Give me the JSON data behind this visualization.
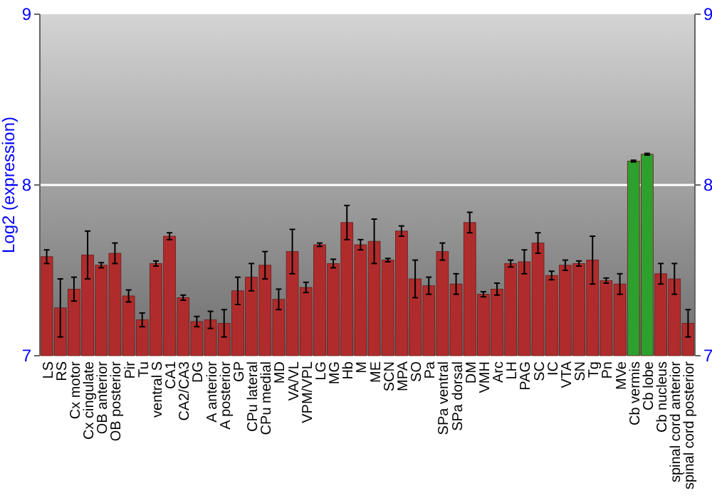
{
  "chart_data": {
    "type": "bar",
    "ylabel": "Log2 (expression)",
    "categories": [
      "LS",
      "RS",
      "Cx motor",
      "Cx cingulate",
      "OB anterior",
      "OB posterior",
      "Pir",
      "Tu",
      "ventral S",
      "CA1",
      "CA2/CA3",
      "DG",
      "A anterior",
      "A posterior",
      "GP",
      "CPu lateral",
      "CPu medial",
      "MD",
      "VA/VL",
      "VPM/VPL",
      "LG",
      "MG",
      "Hb",
      "M",
      "ME",
      "SCN",
      "MPA",
      "SO",
      "Pa",
      "SPa ventral",
      "SPa dorsal",
      "DM",
      "VMH",
      "Arc",
      "LH",
      "PAG",
      "SC",
      "IC",
      "VTA",
      "SN",
      "Tg",
      "Pn",
      "MVe",
      "Cb vermis",
      "Cb lobe",
      "Cb nucleus",
      "spinal cord anterior",
      "spinal cord posterior"
    ],
    "values": [
      7.58,
      7.28,
      7.39,
      7.59,
      7.53,
      7.6,
      7.35,
      7.21,
      7.54,
      7.7,
      7.34,
      7.2,
      7.21,
      7.19,
      7.38,
      7.46,
      7.53,
      7.33,
      7.61,
      7.4,
      7.65,
      7.54,
      7.78,
      7.65,
      7.67,
      7.56,
      7.73,
      7.45,
      7.41,
      7.61,
      7.42,
      7.78,
      7.36,
      7.39,
      7.54,
      7.55,
      7.66,
      7.47,
      7.53,
      7.54,
      7.56,
      7.44,
      7.42,
      8.14,
      8.18,
      7.48,
      7.45,
      7.19
    ],
    "errors": [
      0.04,
      0.17,
      0.07,
      0.14,
      0.015,
      0.06,
      0.035,
      0.04,
      0.015,
      0.02,
      0.015,
      0.03,
      0.05,
      0.08,
      0.08,
      0.08,
      0.08,
      0.06,
      0.13,
      0.03,
      0.01,
      0.025,
      0.1,
      0.03,
      0.13,
      0.01,
      0.03,
      0.11,
      0.05,
      0.05,
      0.06,
      0.06,
      0.015,
      0.035,
      0.02,
      0.07,
      0.06,
      0.025,
      0.03,
      0.015,
      0.14,
      0.015,
      0.06,
      0.005,
      0.005,
      0.06,
      0.09,
      0.08
    ],
    "colors": [
      "#b02c2c",
      "#b02c2c",
      "#b02c2c",
      "#b02c2c",
      "#b02c2c",
      "#b02c2c",
      "#b02c2c",
      "#b02c2c",
      "#b02c2c",
      "#b02c2c",
      "#b02c2c",
      "#b02c2c",
      "#b02c2c",
      "#b02c2c",
      "#b02c2c",
      "#b02c2c",
      "#b02c2c",
      "#b02c2c",
      "#b02c2c",
      "#b02c2c",
      "#b02c2c",
      "#b02c2c",
      "#b02c2c",
      "#b02c2c",
      "#b02c2c",
      "#b02c2c",
      "#b02c2c",
      "#b02c2c",
      "#b02c2c",
      "#b02c2c",
      "#b02c2c",
      "#b02c2c",
      "#b02c2c",
      "#b02c2c",
      "#b02c2c",
      "#b02c2c",
      "#b02c2c",
      "#b02c2c",
      "#b02c2c",
      "#b02c2c",
      "#b02c2c",
      "#b02c2c",
      "#b02c2c",
      "#2ea02e",
      "#2ea02e",
      "#b02c2c",
      "#b02c2c",
      "#b02c2c"
    ],
    "ylim": [
      7,
      9
    ],
    "yticks": [
      7,
      8,
      9
    ],
    "y2lim": [
      7,
      9
    ],
    "y2ticks": [
      7,
      8,
      9
    ],
    "grid": "y"
  }
}
